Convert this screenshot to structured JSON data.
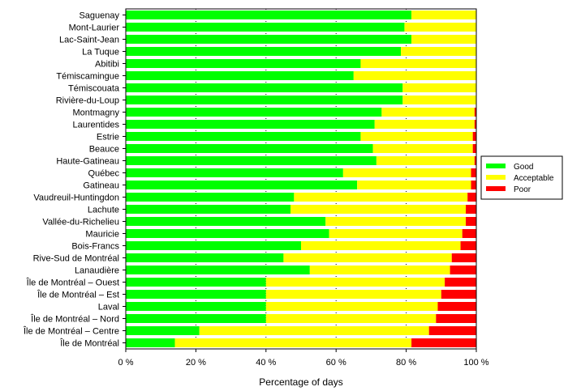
{
  "chart_data": {
    "type": "bar",
    "orientation": "horizontal",
    "stacked": true,
    "xlabel": "Percentage of days",
    "xlim": [
      0,
      100
    ],
    "xticks": [
      "0 %",
      "20 %",
      "40 %",
      "60 %",
      "80 %",
      "100 %"
    ],
    "grid": "vertical dotted",
    "legend_position": "right",
    "categories": [
      "Saguenay",
      "Mont-Laurier",
      "Lac-Saint-Jean",
      "La Tuque",
      "Abitibi",
      "Témiscamingue",
      "Témiscouata",
      "Rivière-du-Loup",
      "Montmagny",
      "Laurentides",
      "Estrie",
      "Beauce",
      "Haute-Gatineau",
      "Québec",
      "Gatineau",
      "Vaudreuil-Huntingdon",
      "Lachute",
      "Vallée-du-Richelieu",
      "Mauricie",
      "Bois-Francs",
      "Rive-Sud de Montréal",
      "Lanaudière",
      "Île de Montréal – Ouest",
      "Île de Montréal – Est",
      "Laval",
      "Île de Montréal – Nord",
      "Île de Montréal – Centre",
      "Île de Montréal"
    ],
    "series": [
      {
        "name": "Good",
        "color": "#00ff00",
        "values": [
          81.5,
          79.5,
          81.5,
          78.5,
          67,
          65,
          79,
          79,
          73,
          71,
          67,
          70.5,
          71.5,
          62,
          66,
          48,
          47,
          57,
          58,
          50,
          45,
          52.5,
          40,
          40,
          40,
          40,
          21,
          14
        ]
      },
      {
        "name": "Acceptable",
        "color": "#ffff00",
        "values": [
          18.5,
          20.5,
          18.5,
          21.5,
          33,
          35,
          21,
          21,
          26.5,
          28.5,
          32,
          28.5,
          28,
          36.5,
          32.5,
          49.5,
          50,
          40,
          38,
          45.5,
          48,
          40,
          51,
          50,
          49,
          48.5,
          65.5,
          67.5
        ]
      },
      {
        "name": "Poor",
        "color": "#ff0000",
        "values": [
          0,
          0,
          0,
          0,
          0,
          0,
          0,
          0,
          0.5,
          0.5,
          1,
          1,
          0.5,
          1.5,
          1.5,
          2.5,
          3,
          3,
          4,
          4.5,
          7,
          7.5,
          9,
          10,
          11,
          11.5,
          13.5,
          18.5
        ]
      }
    ]
  }
}
